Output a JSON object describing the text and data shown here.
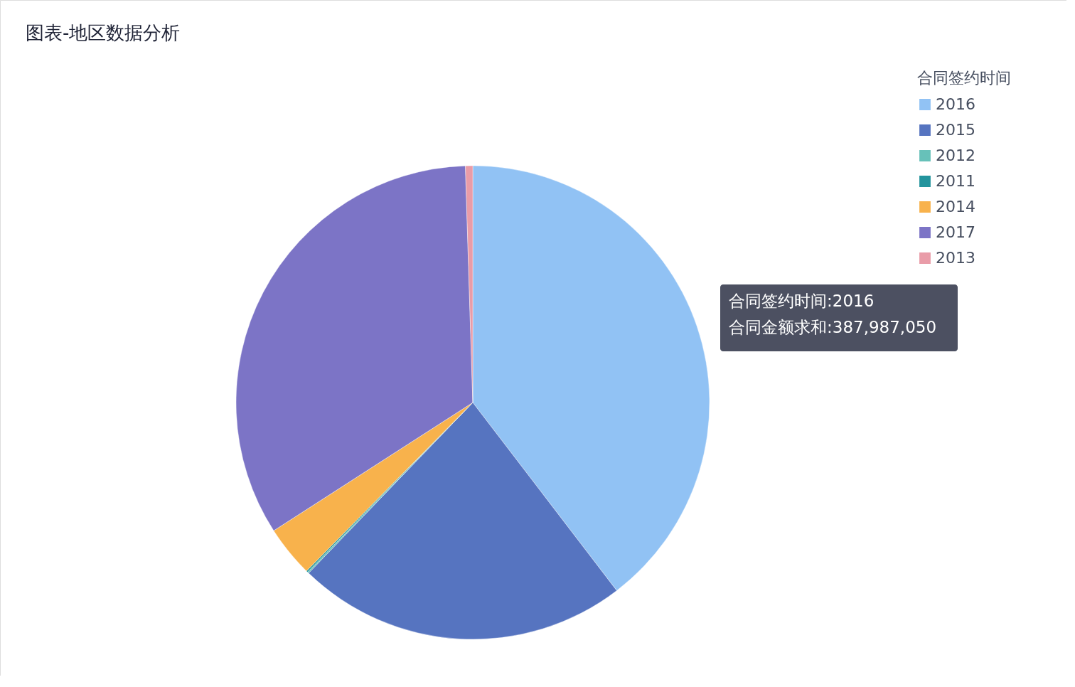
{
  "chart_data": {
    "type": "pie",
    "title": "图表-地区数据分析",
    "legend_title": "合同签约时间",
    "legend": "top right",
    "categories": [
      "2016",
      "2015",
      "2012",
      "2011",
      "2014",
      "2017",
      "2013"
    ],
    "values": [
      39.6,
      22.6,
      0.1,
      0.1,
      3.5,
      33.6,
      0.5
    ],
    "colors": [
      "#91c2f4",
      "#5674c0",
      "#67c1b9",
      "#23949d",
      "#f8b24c",
      "#7c74c6",
      "#e99ca8"
    ],
    "annotations": [
      "合同签约时间:2016",
      "合同金额求和:387,987,050"
    ]
  }
}
